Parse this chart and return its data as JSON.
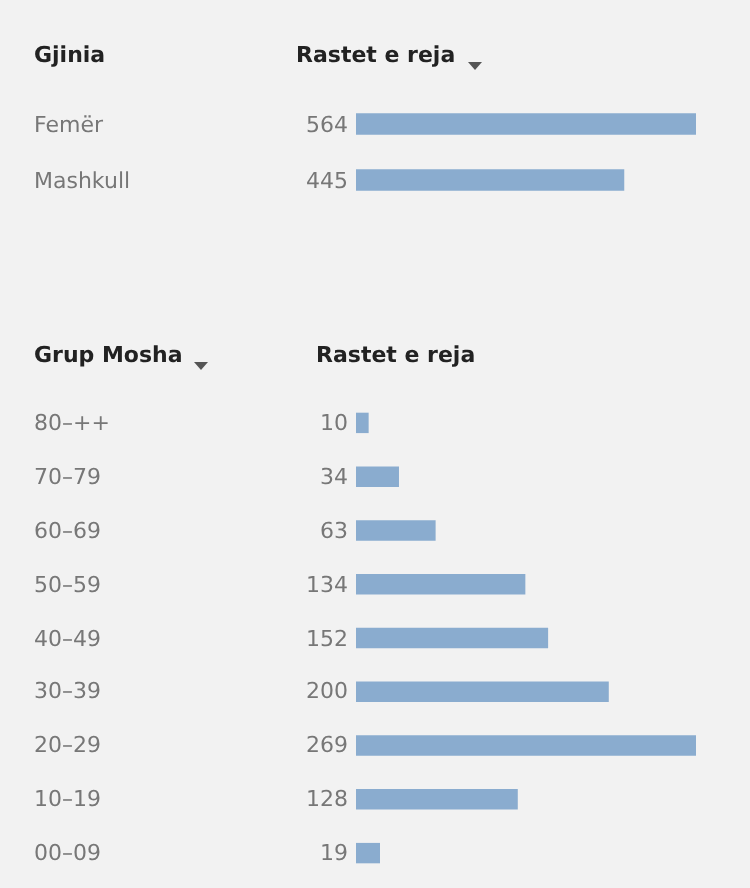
{
  "chart_data": [
    {
      "type": "bar",
      "orientation": "horizontal",
      "ylabel": "Gjinia",
      "xlabel": "Rastet e reja",
      "categories": [
        "Femër",
        "Mashkull"
      ],
      "values": [
        564,
        445
      ],
      "color": "#8aaccf",
      "data_labels": true
    },
    {
      "type": "bar",
      "orientation": "horizontal",
      "ylabel": "Grup Mosha",
      "xlabel": "Rastet e reja",
      "categories": [
        "80–++",
        "70–79",
        "60–69",
        "50–59",
        "40–49",
        "30–39",
        "20–29",
        "10–19",
        "00–09"
      ],
      "values": [
        10,
        34,
        63,
        134,
        152,
        200,
        269,
        128,
        19
      ],
      "color": "#8aaccf",
      "data_labels": true
    }
  ]
}
